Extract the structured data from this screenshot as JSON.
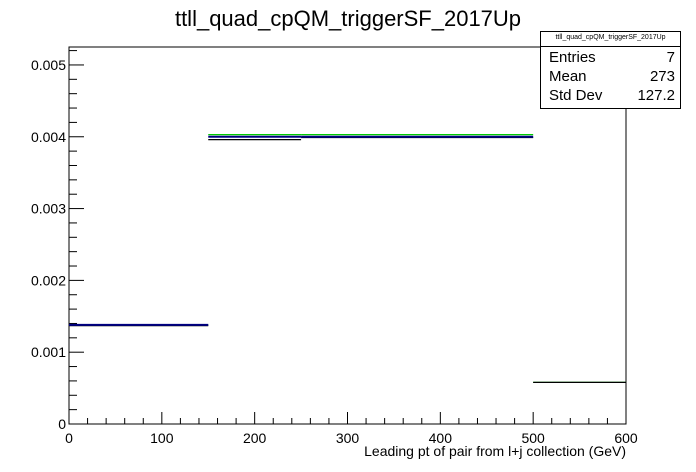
{
  "chart_data": {
    "type": "step",
    "title": "ttll_quad_cpQM_triggerSF_2017Up",
    "xlabel": "Leading pt of pair from l+j collection (GeV)",
    "ylabel": "",
    "xlim": [
      0,
      600
    ],
    "ylim": [
      0,
      0.00525
    ],
    "x_ticks": [
      0,
      100,
      200,
      300,
      400,
      500,
      600
    ],
    "y_ticks": [
      0,
      0.001,
      0.002,
      0.003,
      0.004,
      0.005
    ],
    "y_tick_labels": [
      "0",
      "0.001",
      "0.002",
      "0.003",
      "0.004",
      "0.005"
    ],
    "grid": false,
    "series": [
      {
        "color": "#00cc00",
        "bins": [
          {
            "x0": 0,
            "x1": 150,
            "y": 0.00138
          },
          {
            "x0": 150,
            "x1": 250,
            "y": 0.00403
          },
          {
            "x0": 250,
            "x1": 500,
            "y": 0.00403
          },
          {
            "x0": 500,
            "x1": 600,
            "y": 0.00058
          }
        ]
      },
      {
        "color": "#000000",
        "bins": [
          {
            "x0": 0,
            "x1": 150,
            "y": 0.00137
          },
          {
            "x0": 150,
            "x1": 250,
            "y": 0.00396
          },
          {
            "x0": 250,
            "x1": 500,
            "y": 0.00399
          },
          {
            "x0": 500,
            "x1": 600,
            "y": 0.00058
          }
        ]
      },
      {
        "color": "#000080",
        "bins": [
          {
            "x0": 0,
            "x1": 150,
            "y": 0.00138
          },
          {
            "x0": 150,
            "x1": 250,
            "y": 0.004
          },
          {
            "x0": 250,
            "x1": 500,
            "y": 0.004
          }
        ]
      }
    ],
    "stats_box": {
      "title": "ttll_quad_cpQM_triggerSF_2017Up",
      "rows": [
        {
          "label": "Entries",
          "value": "7"
        },
        {
          "label": "Mean",
          "value": "273"
        },
        {
          "label": "Std Dev",
          "value": "127.2"
        }
      ]
    }
  }
}
